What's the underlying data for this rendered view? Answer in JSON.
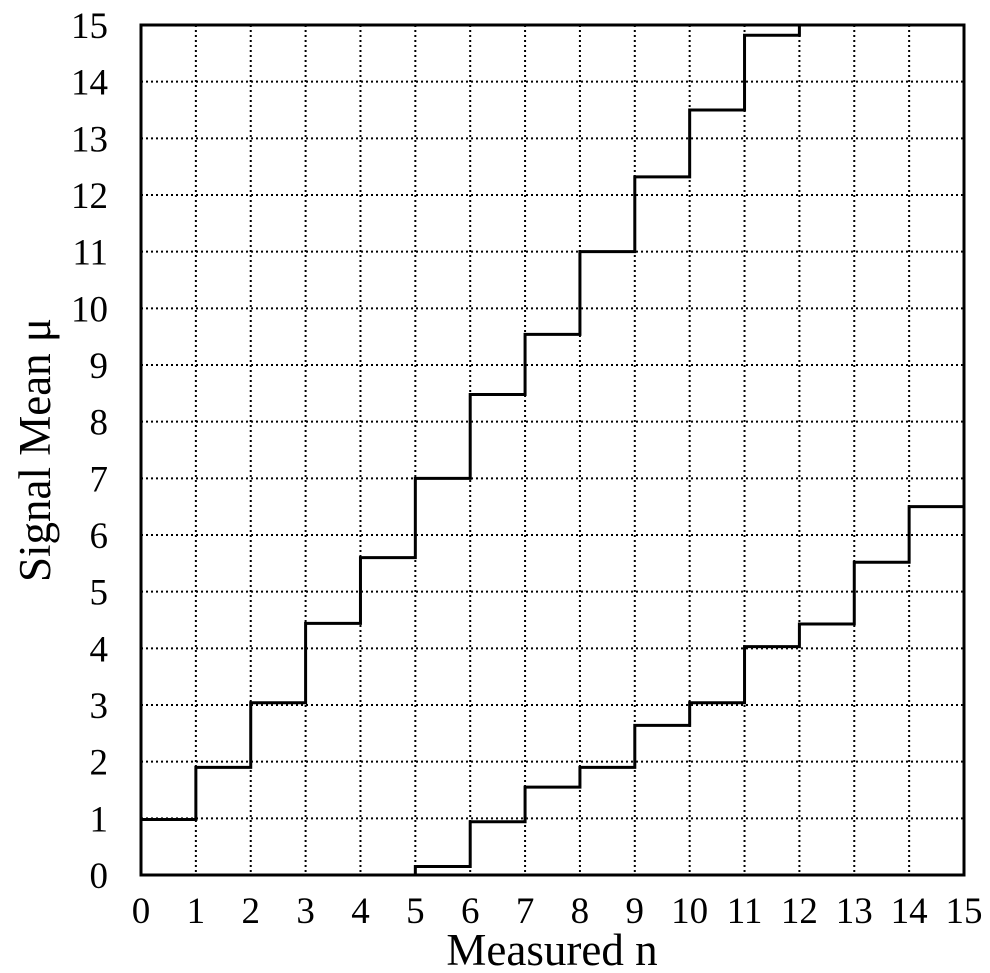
{
  "chart_data": {
    "type": "line",
    "title": "",
    "xlabel": "Measured n",
    "ylabel": "Signal Mean μ",
    "xlim": [
      0,
      15
    ],
    "ylim": [
      0,
      15
    ],
    "xticks": [
      "0",
      "1",
      "2",
      "3",
      "4",
      "5",
      "6",
      "7",
      "8",
      "9",
      "10",
      "11",
      "12",
      "13",
      "14",
      "15"
    ],
    "yticks": [
      "0",
      "1",
      "2",
      "3",
      "4",
      "5",
      "6",
      "7",
      "8",
      "9",
      "10",
      "11",
      "12",
      "13",
      "14",
      "15"
    ],
    "grid": true,
    "step": true,
    "series": [
      {
        "role": "upper-limit",
        "color": "#000000",
        "x": [
          0,
          1,
          2,
          3,
          4,
          5,
          6,
          7,
          8,
          9,
          10,
          11,
          12
        ],
        "y": [
          0.98,
          1.9,
          3.04,
          4.44,
          5.6,
          7.0,
          8.48,
          9.54,
          11.0,
          12.32,
          13.5,
          14.82,
          15.0
        ]
      },
      {
        "role": "lower-limit",
        "color": "#000000",
        "x": [
          0,
          1,
          2,
          3,
          4,
          5,
          6,
          7,
          8,
          9,
          10,
          11,
          12,
          13,
          14,
          15
        ],
        "y": [
          0,
          0,
          0,
          0,
          0,
          0.15,
          0.94,
          1.55,
          1.9,
          2.64,
          3.04,
          4.03,
          4.43,
          5.52,
          6.5,
          6.5
        ]
      }
    ]
  }
}
